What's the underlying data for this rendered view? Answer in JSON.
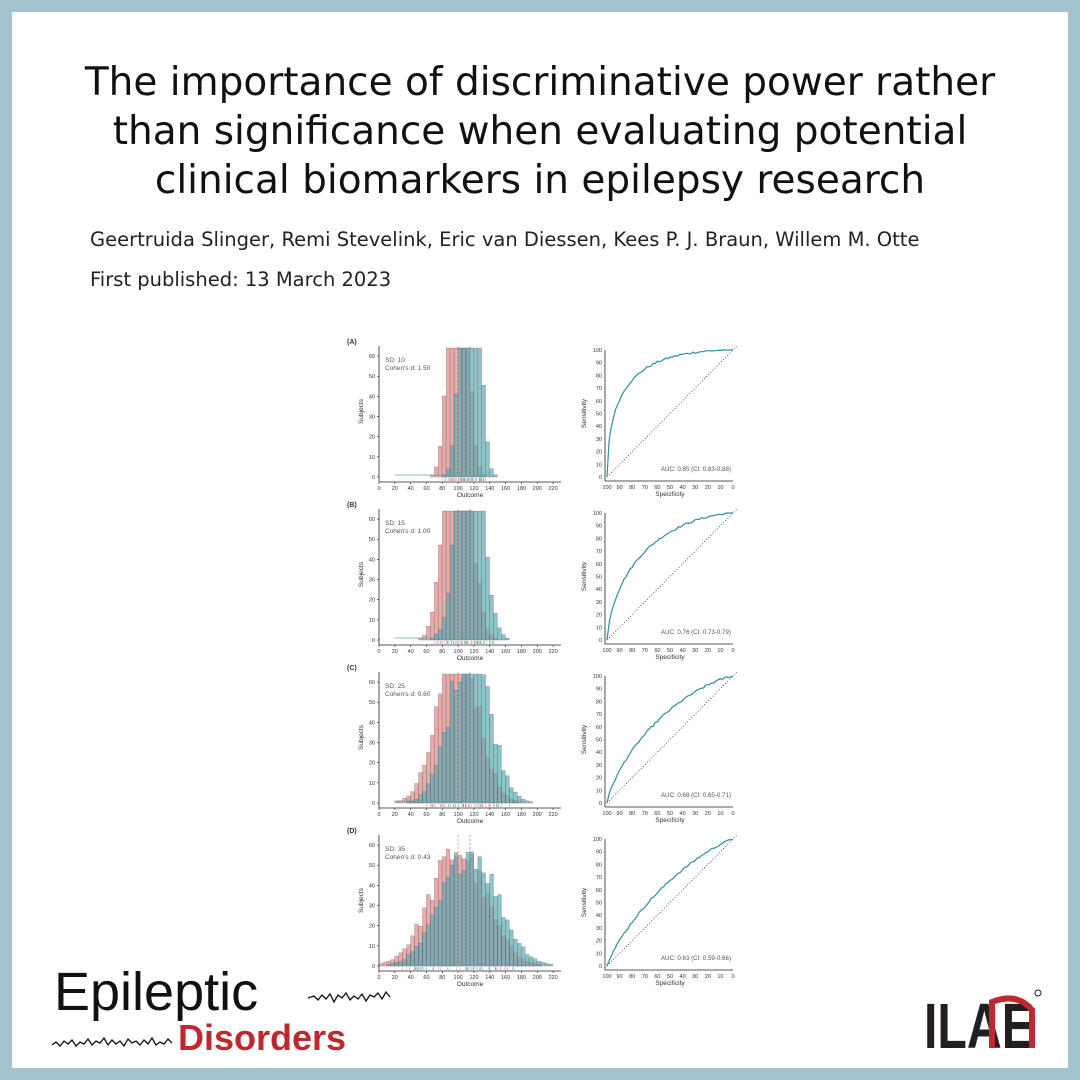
{
  "header": {
    "title_lines": [
      "The importance of discriminative power rather",
      "than significance when evaluating potential",
      "clinical biomarkers in epilepsy research"
    ],
    "authors": "Geertruida Slinger, Remi Stevelink, Eric van Diessen, Kees P. J. Braun, Willem M. Otte",
    "published": "First published: 13 March 2023"
  },
  "figure": {
    "histogram_axis": {
      "xlabel": "Outcome",
      "ylabel": "Subjects",
      "xticks": [
        "0",
        "20",
        "40",
        "60",
        "80",
        "100",
        "120",
        "140",
        "160",
        "180",
        "200",
        "220"
      ],
      "yticks": [
        "0",
        "10",
        "20",
        "30",
        "40",
        "50",
        "60"
      ],
      "xlim": [
        0,
        230
      ],
      "ylim": [
        0,
        65
      ]
    },
    "roc_axis": {
      "xlabel": "Specificity",
      "ylabel": "Sensitivity",
      "ticks": [
        "100",
        "90",
        "80",
        "70",
        "60",
        "50",
        "40",
        "30",
        "20",
        "10",
        "0"
      ]
    },
    "panels": [
      {
        "label": "(A)",
        "sd": "SD: 10",
        "cohen": "Cohen's d: 1.50",
        "auc": "AUC: 0.85 (CI: 0.83-0.88)",
        "sd_value": 10,
        "d_value": 1.5,
        "auc_value": 0.85
      },
      {
        "label": "(B)",
        "sd": "SD: 15",
        "cohen": "Cohen's d: 1.00",
        "auc": "AUC: 0.76 (CI: 0.73-0.79)",
        "sd_value": 15,
        "d_value": 1.0,
        "auc_value": 0.76
      },
      {
        "label": "(C)",
        "sd": "SD: 25",
        "cohen": "Cohen's d: 0.60",
        "auc": "AUC: 0.68 (CI: 0.65-0.71)",
        "sd_value": 25,
        "d_value": 0.6,
        "auc_value": 0.68
      },
      {
        "label": "(D)",
        "sd": "SD: 35",
        "cohen": "Cohen's d: 0.43",
        "auc": "AUC: 0.63 (CI: 0.59-0.66)",
        "sd_value": 35,
        "d_value": 0.43,
        "auc_value": 0.63
      }
    ],
    "group_means": [
      100,
      115
    ],
    "colors": {
      "group1": "#e58e8e",
      "group2": "#5fa9b5",
      "roc": "#2f8f9d"
    }
  },
  "logos": {
    "journal_line1": "Epileptic",
    "journal_line2": "Disorders",
    "org": "ILAE",
    "colors": {
      "disorders": "#c0282f",
      "ilae_red": "#c0282f"
    }
  },
  "colors": {
    "frame": "#a3c3cf",
    "card": "#ffffff"
  }
}
